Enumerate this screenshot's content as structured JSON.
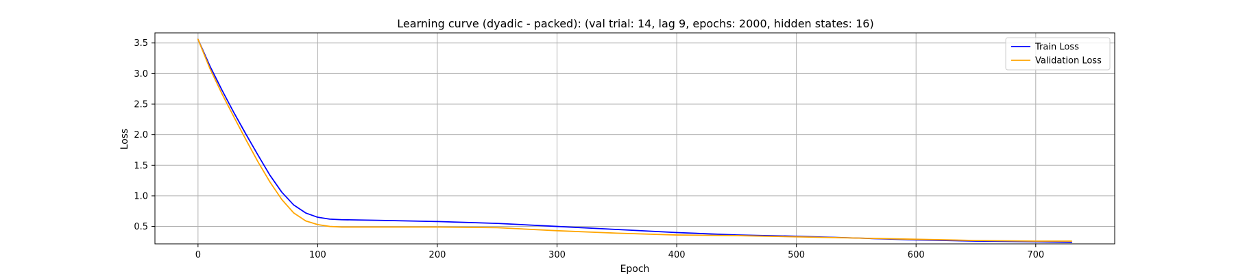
{
  "chart_data": {
    "type": "line",
    "title": "Learning curve (dyadic - packed): (val trial: 14, lag 9, epochs: 2000, hidden states: 16)",
    "xlabel": "Epoch",
    "ylabel": "Loss",
    "xlim": [
      -36,
      766
    ],
    "ylim": [
      0.215,
      3.665
    ],
    "xticks": [
      0,
      100,
      200,
      300,
      400,
      500,
      600,
      700
    ],
    "yticks": [
      0.5,
      1.0,
      1.5,
      2.0,
      2.5,
      3.0,
      3.5
    ],
    "grid": true,
    "legend_position": "top-right",
    "series": [
      {
        "name": "Train Loss",
        "color": "#0000ff",
        "x": [
          0,
          10,
          20,
          30,
          40,
          50,
          60,
          70,
          80,
          90,
          100,
          110,
          120,
          150,
          200,
          250,
          300,
          350,
          400,
          450,
          500,
          550,
          600,
          650,
          700,
          730
        ],
        "y": [
          3.56,
          3.12,
          2.73,
          2.36,
          2.01,
          1.67,
          1.34,
          1.06,
          0.85,
          0.72,
          0.65,
          0.62,
          0.61,
          0.6,
          0.58,
          0.55,
          0.5,
          0.45,
          0.4,
          0.36,
          0.34,
          0.31,
          0.28,
          0.26,
          0.25,
          0.24
        ]
      },
      {
        "name": "Validation Loss",
        "color": "#ffa500",
        "x": [
          0,
          10,
          20,
          30,
          40,
          50,
          60,
          70,
          80,
          90,
          100,
          110,
          120,
          150,
          200,
          250,
          300,
          350,
          400,
          450,
          500,
          550,
          600,
          650,
          700,
          730
        ],
        "y": [
          3.56,
          3.08,
          2.67,
          2.29,
          1.92,
          1.56,
          1.23,
          0.94,
          0.72,
          0.59,
          0.53,
          0.5,
          0.49,
          0.49,
          0.49,
          0.48,
          0.43,
          0.39,
          0.36,
          0.35,
          0.33,
          0.31,
          0.29,
          0.27,
          0.26,
          0.26
        ]
      }
    ]
  }
}
